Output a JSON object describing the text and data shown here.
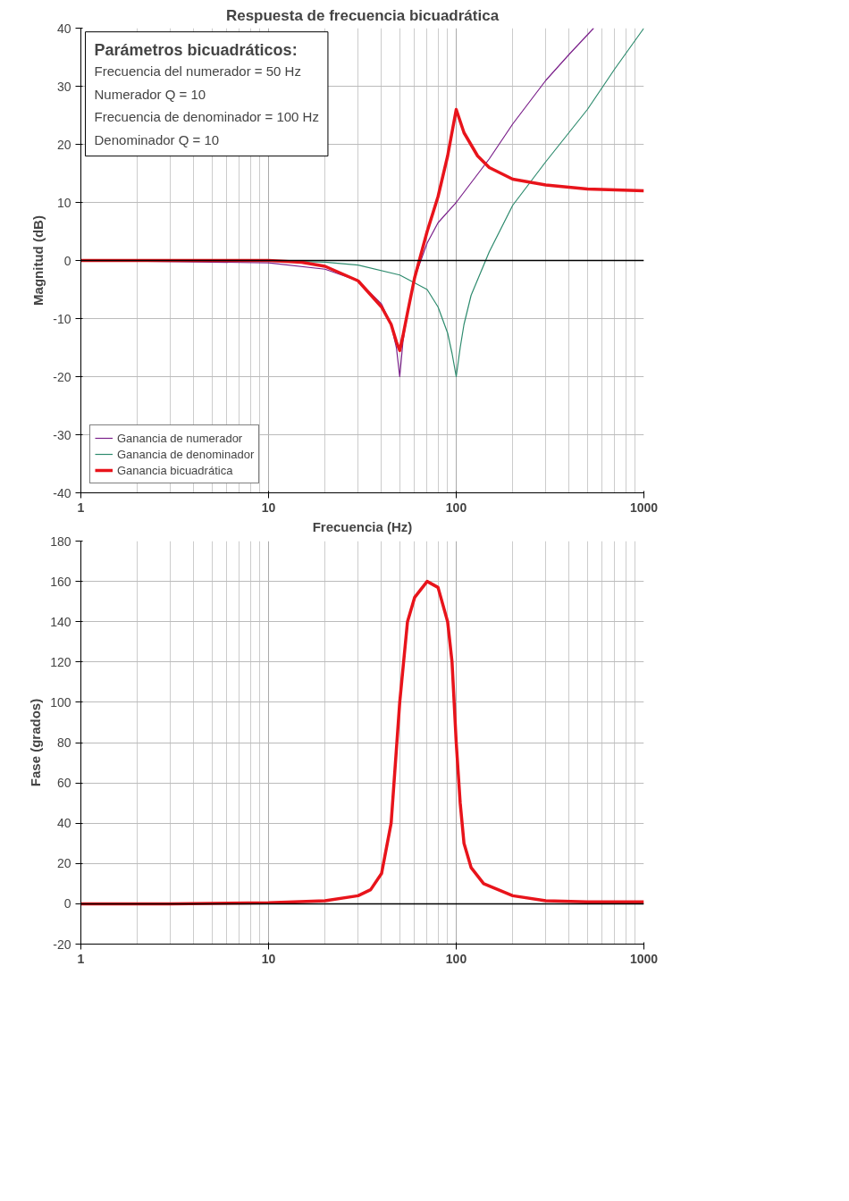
{
  "chart_data": [
    {
      "type": "line",
      "title": "Respuesta de frecuencia bicuadrática",
      "xlabel": "Frecuencia (Hz)",
      "ylabel": "Magnitud (dB)",
      "log": "x",
      "xlim": [
        1,
        1000
      ],
      "xticks": [
        1,
        10,
        100,
        1000
      ],
      "ylim": [
        -40,
        40
      ],
      "yticks": [
        -40,
        -30,
        -20,
        -10,
        0,
        10,
        20,
        30,
        40
      ],
      "grid": true,
      "legend": "bottom left",
      "ref_lines": [
        {
          "axis": "y",
          "value": 0,
          "color": "#000000"
        }
      ],
      "annotations": [
        "Parámetros bicuadráticos:",
        "Frecuencia del numerador = 50 Hz",
        "Numerador Q = 10",
        "Frecuencia de denominador = 100 Hz",
        "Denominador Q = 10"
      ],
      "series": [
        {
          "name": "Ganancia de numerador",
          "color": "#7a1f8a",
          "x": [
            1,
            10,
            20,
            30,
            40,
            45,
            48,
            50,
            52,
            55,
            60,
            70,
            80,
            100,
            150,
            200,
            300,
            400,
            540
          ],
          "values": [
            0,
            -0.4,
            -1.5,
            -3.5,
            -7.5,
            -11,
            -15,
            -20,
            -14,
            -9,
            -3,
            3,
            6.5,
            10,
            17.5,
            23.5,
            31,
            35.5,
            40
          ]
        },
        {
          "name": "Ganancia de denominador",
          "color": "#2e8b6e",
          "x": [
            1,
            10,
            20,
            30,
            50,
            70,
            80,
            90,
            95,
            100,
            105,
            110,
            120,
            150,
            200,
            300,
            500,
            700,
            1000
          ],
          "values": [
            0,
            0,
            -0.3,
            -0.8,
            -2.5,
            -5,
            -8,
            -12.5,
            -16,
            -20,
            -15,
            -11,
            -6,
            1.5,
            9.5,
            17,
            26,
            33,
            40
          ]
        },
        {
          "name": "Ganancia bicuadrática",
          "color": "#e8141b",
          "x": [
            1,
            10,
            15,
            20,
            30,
            40,
            45,
            48,
            50,
            52,
            55,
            60,
            70,
            80,
            90,
            100,
            110,
            130,
            150,
            200,
            300,
            500,
            1000
          ],
          "values": [
            0,
            0,
            -0.3,
            -1,
            -3.5,
            -8,
            -11,
            -14,
            -15.5,
            -13,
            -9,
            -3,
            5,
            11,
            18,
            26,
            22,
            18,
            16,
            14,
            13,
            12.3,
            12
          ]
        }
      ]
    },
    {
      "type": "line",
      "ylabel": "Fase (grados)",
      "log": "x",
      "xlim": [
        1,
        1000
      ],
      "xticks": [
        1,
        10,
        100,
        1000
      ],
      "ylim": [
        -20,
        180
      ],
      "yticks": [
        -20,
        0,
        20,
        40,
        60,
        80,
        100,
        120,
        140,
        160,
        180
      ],
      "grid": true,
      "ref_lines": [
        {
          "axis": "y",
          "value": 0,
          "color": "#000000"
        }
      ],
      "series": [
        {
          "color": "#e8141b",
          "x": [
            1,
            3,
            10,
            20,
            30,
            35,
            40,
            45,
            50,
            55,
            60,
            70,
            80,
            90,
            95,
            100,
            105,
            110,
            120,
            140,
            200,
            300,
            500,
            1000
          ],
          "values": [
            0,
            0,
            0.5,
            1.5,
            4,
            7,
            15,
            40,
            100,
            140,
            152,
            160,
            157,
            140,
            120,
            80,
            50,
            30,
            18,
            10,
            4,
            1.5,
            1,
            1
          ]
        }
      ]
    }
  ]
}
